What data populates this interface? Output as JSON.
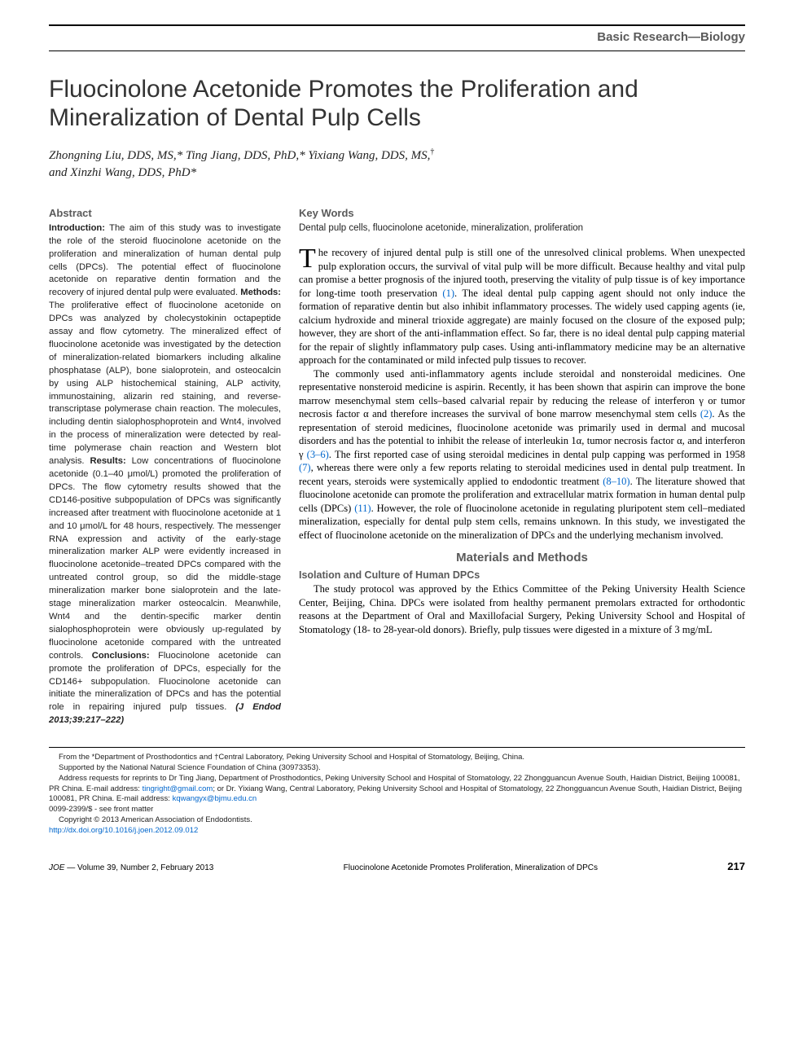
{
  "category": "Basic Research—Biology",
  "title": "Fluocinolone Acetonide Promotes the Proliferation and Mineralization of Dental Pulp Cells",
  "authors_html": "Zhongning Liu, DDS, MS,* Ting Jiang, DDS, PhD,* Yixiang Wang, DDS, MS,† and Xinzhi Wang, DDS, PhD*",
  "abstract_heading": "Abstract",
  "abstract": {
    "intro_label": "Introduction:",
    "intro": " The aim of this study was to investigate the role of the steroid fluocinolone acetonide on the proliferation and mineralization of human dental pulp cells (DPCs). The potential effect of fluocinolone acetonide on reparative dentin formation and the recovery of injured dental pulp were evaluated. ",
    "methods_label": "Methods:",
    "methods": " The proliferative effect of fluocinolone acetonide on DPCs was analyzed by cholecystokinin octapeptide assay and flow cytometry. The mineralized effect of fluocinolone acetonide was investigated by the detection of mineralization-related biomarkers including alkaline phosphatase (ALP), bone sialoprotein, and osteocalcin by using ALP histochemical staining, ALP activity, immunostaining, alizarin red staining, and reverse-transcriptase polymerase chain reaction. The molecules, including dentin sialophosphoprotein and Wnt4, involved in the process of mineralization were detected by real-time polymerase chain reaction and Western blot analysis. ",
    "results_label": "Results:",
    "results": " Low concentrations of fluocinolone acetonide (0.1–40 μmol/L) promoted the proliferation of DPCs. The flow cytometry results showed that the CD146-positive subpopulation of DPCs was significantly increased after treatment with fluocinolone acetonide at 1 and 10 μmol/L for 48 hours, respectively. The messenger RNA expression and activity of the early-stage mineralization marker ALP were evidently increased in fluocinolone acetonide–treated DPCs compared with the untreated control group, so did the middle-stage mineralization marker bone sialoprotein and the late-stage mineralization marker osteocalcin. Meanwhile, Wnt4 and the dentin-specific marker dentin sialophosphoprotein were obviously up-regulated by fluocinolone acetonide compared with the untreated controls. ",
    "conclusions_label": "Conclusions:",
    "conclusions": " Fluocinolone acetonide can promote the proliferation of DPCs, especially for the CD146+ subpopulation. Fluocinolone acetonide can initiate the mineralization of DPCs and has the potential role in repairing injured pulp tissues. ",
    "citation": "(J Endod 2013;39:217–222)"
  },
  "keywords_heading": "Key Words",
  "keywords": "Dental pulp cells, fluocinolone acetonide, mineralization, proliferation",
  "intro_paras": [
    "The recovery of injured dental pulp is still one of the unresolved clinical problems. When unexpected pulp exploration occurs, the survival of vital pulp will be more difficult. Because healthy and vital pulp can promise a better prognosis of the injured tooth, preserving the vitality of pulp tissue is of key importance for long-time tooth preservation (1). The ideal dental pulp capping agent should not only induce the formation of reparative dentin but also inhibit inflammatory processes. The widely used capping agents (ie, calcium hydroxide and mineral trioxide aggregate) are mainly focused on the closure of the exposed pulp; however, they are short of the anti-inflammation effect. So far, there is no ideal dental pulp capping material for the repair of slightly inflammatory pulp cases. Using anti-inflammatory medicine may be an alternative approach for the contaminated or mild infected pulp tissues to recover.",
    "The commonly used anti-inflammatory agents include steroidal and nonsteroidal medicines. One representative nonsteroid medicine is aspirin. Recently, it has been shown that aspirin can improve the bone marrow mesenchymal stem cells–based calvarial repair by reducing the release of interferon γ or tumor necrosis factor α and therefore increases the survival of bone marrow mesenchymal stem cells (2). As the representation of steroid medicines, fluocinolone acetonide was primarily used in dermal and mucosal disorders and has the potential to inhibit the release of interleukin 1α, tumor necrosis factor α, and interferon γ (3–6). The first reported case of using steroidal medicines in dental pulp capping was performed in 1958 (7), whereas there were only a few reports relating to steroidal medicines used in dental pulp treatment. In recent years, steroids were systemically applied to endodontic treatment (8–10). The literature showed that fluocinolone acetonide can promote the proliferation and extracellular matrix formation in human dental pulp cells (DPCs) (11). However, the role of fluocinolone acetonide in regulating pluripotent stem cell–mediated mineralization, especially for dental pulp stem cells, remains unknown. In this study, we investigated the effect of fluocinolone acetonide on the mineralization of DPCs and the underlying mechanism involved."
  ],
  "materials_heading": "Materials and Methods",
  "subsection_heading": "Isolation and Culture of Human DPCs",
  "materials_para": "The study protocol was approved by the Ethics Committee of the Peking University Health Science Center, Beijing, China. DPCs were isolated from healthy permanent premolars extracted for orthodontic reasons at the Department of Oral and Maxillofacial Surgery, Peking University School and Hospital of Stomatology (18- to 28-year-old donors). Briefly, pulp tissues were digested in a mixture of 3 mg/mL",
  "footnotes": {
    "affil": "From the *Department of Prosthodontics and †Central Laboratory, Peking University School and Hospital of Stomatology, Beijing, China.",
    "support": "Supported by the National Natural Science Foundation of China (30973353).",
    "address": "Address requests for reprints to Dr Ting Jiang, Department of Prosthodontics, Peking University School and Hospital of Stomatology, 22 Zhongguancun Avenue South, Haidian District, Beijing 100081, PR China. E-mail address: ",
    "email1": "tingright@gmail.com",
    "address2": "; or Dr. Yixiang Wang, Central Laboratory, Peking University School and Hospital of Stomatology, 22 Zhongguancun Avenue South, Haidian District, Beijing 100081, PR China. E-mail address: ",
    "email2": "kqwangyx@bjmu.edu.cn",
    "issn": "0099-2399/$ - see front matter",
    "copyright": "Copyright © 2013 American Association of Endodontists.",
    "doi": "http://dx.doi.org/10.1016/j.joen.2012.09.012"
  },
  "footer": {
    "journal": "JOE",
    "issue": " — Volume 39, Number 2, February 2013",
    "running": "Fluocinolone Acetonide Promotes Proliferation, Mineralization of DPCs",
    "page": "217"
  },
  "colors": {
    "heading_gray": "#5a5a5a",
    "link_blue": "#0066cc"
  }
}
